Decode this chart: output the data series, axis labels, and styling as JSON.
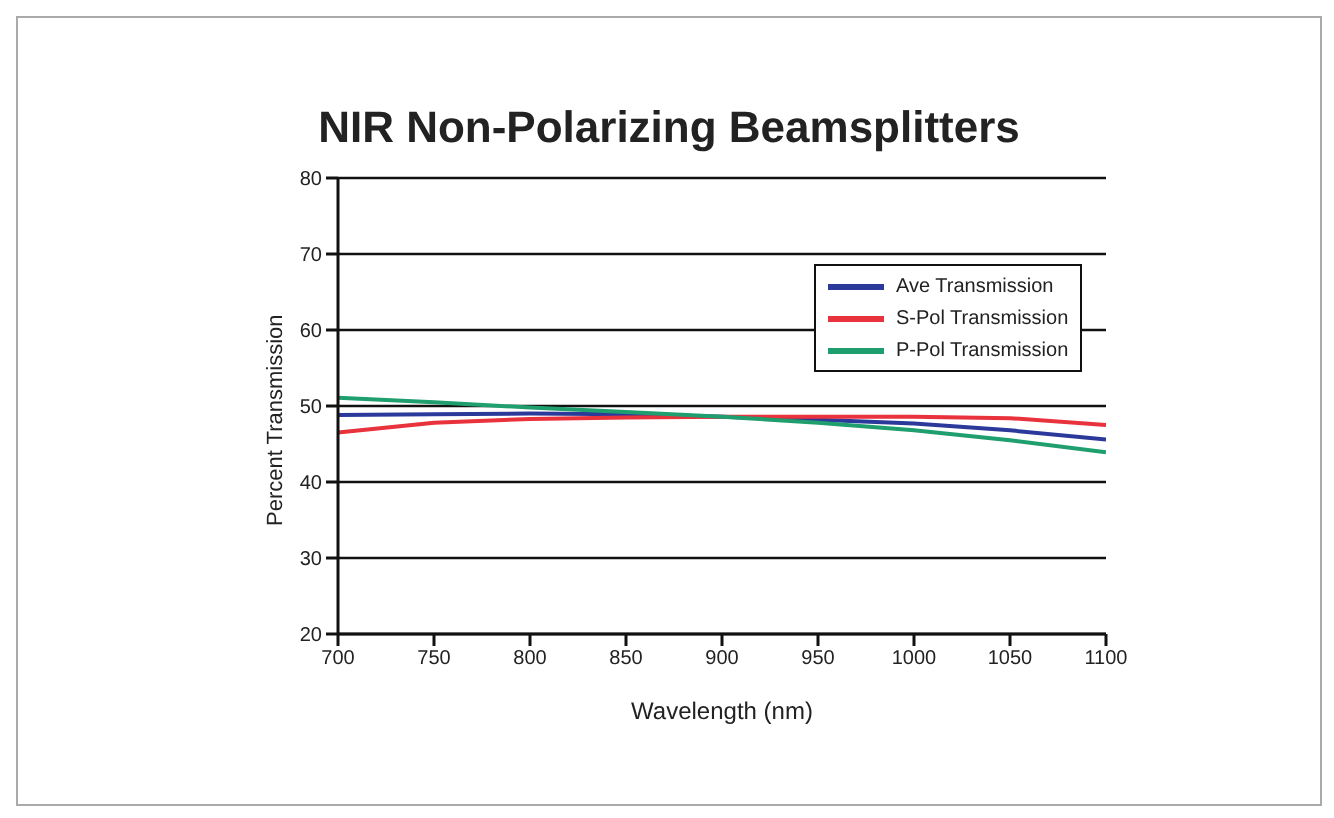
{
  "chart_data": {
    "type": "line",
    "title": "NIR Non-Polarizing Beamsplitters",
    "xlabel": "Wavelength (nm)",
    "ylabel": "Percent Transmission",
    "x": [
      700,
      750,
      800,
      850,
      900,
      950,
      1000,
      1050,
      1100
    ],
    "series": [
      {
        "name": "Ave Transmission",
        "color": "#2b3a9a",
        "values": [
          48.8,
          48.9,
          49.0,
          48.9,
          48.6,
          48.2,
          47.7,
          46.8,
          45.6
        ]
      },
      {
        "name": "S-Pol Transmission",
        "color": "#e8323c",
        "values": [
          46.5,
          47.8,
          48.3,
          48.5,
          48.6,
          48.6,
          48.6,
          48.4,
          47.5
        ]
      },
      {
        "name": "P-Pol Transmission",
        "color": "#1f9e6e",
        "values": [
          51.1,
          50.5,
          49.8,
          49.2,
          48.6,
          47.8,
          46.8,
          45.5,
          43.9
        ]
      }
    ],
    "xlim": [
      700,
      1100
    ],
    "xticks": [
      700,
      750,
      800,
      850,
      900,
      950,
      1000,
      1050,
      1100
    ],
    "ylim": [
      20,
      80
    ],
    "yticks": [
      20,
      30,
      40,
      50,
      60,
      70,
      80
    ],
    "grid": "y",
    "legend": "top right",
    "marker": "none",
    "line_style": "solid"
  }
}
